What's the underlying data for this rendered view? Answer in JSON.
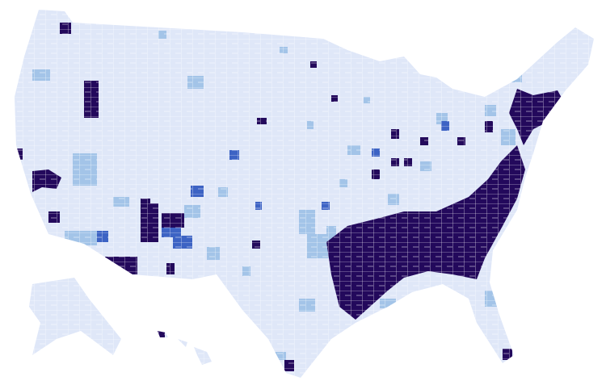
{
  "map": {
    "palette": [
      "#dfe7f8",
      "#a3c4e8",
      "#3d63c4",
      "#23095c"
    ]
  }
}
